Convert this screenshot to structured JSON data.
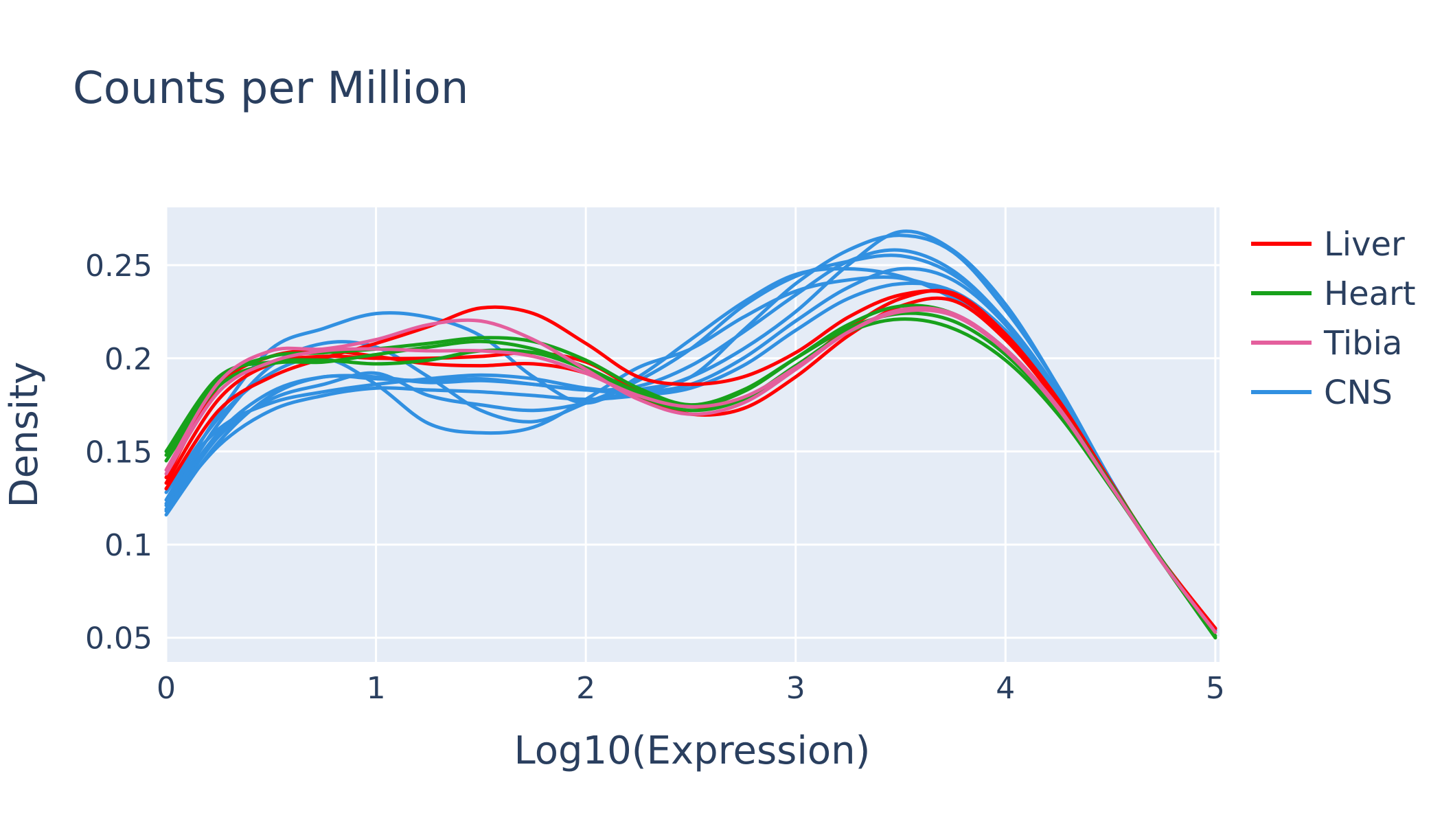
{
  "chart_data": {
    "type": "line",
    "title": "Counts per Million",
    "xlabel": "Log10(Expression)",
    "ylabel": "Density",
    "xlim": [
      0,
      5.02
    ],
    "ylim": [
      0.037,
      0.281
    ],
    "xticks": [
      0,
      1,
      2,
      3,
      4,
      5
    ],
    "xtick_labels": [
      "0",
      "1",
      "2",
      "3",
      "4",
      "5"
    ],
    "yticks": [
      0.05,
      0.1,
      0.15,
      0.2,
      0.25
    ],
    "ytick_labels": [
      "0.05",
      "0.1",
      "0.15",
      "0.2",
      "0.25"
    ],
    "grid": true,
    "background": "#e5ecf6",
    "legend_position": "right",
    "legend": [
      {
        "name": "Liver",
        "color": "#ff0000"
      },
      {
        "name": "Heart",
        "color": "#18a11b"
      },
      {
        "name": "Tibia",
        "color": "#e45f9d"
      },
      {
        "name": "CNS",
        "color": "#3190e1"
      }
    ],
    "series": [
      {
        "group": "CNS",
        "color": "#3190e1",
        "x": [
          0,
          0.25,
          0.5,
          0.75,
          1,
          1.25,
          1.5,
          1.75,
          2,
          2.25,
          2.5,
          2.75,
          3,
          3.25,
          3.5,
          3.75,
          4,
          4.25,
          4.5,
          4.75,
          5
        ],
        "y": [
          0.116,
          0.155,
          0.18,
          0.19,
          0.189,
          0.188,
          0.189,
          0.186,
          0.183,
          0.182,
          0.19,
          0.205,
          0.225,
          0.25,
          0.268,
          0.258,
          0.229,
          0.185,
          0.135,
          0.09,
          0.055
        ]
      },
      {
        "group": "CNS",
        "color": "#3190e1",
        "x": [
          0,
          0.25,
          0.5,
          0.75,
          1,
          1.25,
          1.5,
          1.75,
          2,
          2.25,
          2.5,
          2.75,
          3,
          3.25,
          3.5,
          3.75,
          4,
          4.25,
          4.5,
          4.75,
          5
        ],
        "y": [
          0.118,
          0.158,
          0.178,
          0.186,
          0.192,
          0.18,
          0.175,
          0.172,
          0.176,
          0.183,
          0.19,
          0.215,
          0.24,
          0.258,
          0.266,
          0.257,
          0.226,
          0.185,
          0.135,
          0.09,
          0.055
        ]
      },
      {
        "group": "CNS",
        "color": "#3190e1",
        "x": [
          0,
          0.25,
          0.5,
          0.75,
          1,
          1.25,
          1.5,
          1.75,
          2,
          2.25,
          2.5,
          2.75,
          3,
          3.25,
          3.5,
          3.75,
          4,
          4.25,
          4.5,
          4.75,
          5
        ],
        "y": [
          0.121,
          0.16,
          0.182,
          0.19,
          0.19,
          0.187,
          0.188,
          0.186,
          0.183,
          0.185,
          0.196,
          0.214,
          0.234,
          0.252,
          0.258,
          0.247,
          0.22,
          0.182,
          0.134,
          0.09,
          0.054
        ]
      },
      {
        "group": "CNS",
        "color": "#3190e1",
        "x": [
          0,
          0.25,
          0.5,
          0.75,
          1,
          1.25,
          1.5,
          1.75,
          2,
          2.25,
          2.5,
          2.75,
          3,
          3.25,
          3.5,
          3.75,
          4,
          4.25,
          4.5,
          4.75,
          5
        ],
        "y": [
          0.122,
          0.165,
          0.196,
          0.208,
          0.206,
          0.19,
          0.172,
          0.166,
          0.176,
          0.188,
          0.205,
          0.228,
          0.244,
          0.252,
          0.255,
          0.245,
          0.22,
          0.182,
          0.134,
          0.09,
          0.054
        ]
      },
      {
        "group": "CNS",
        "color": "#3190e1",
        "x": [
          0,
          0.25,
          0.5,
          0.75,
          1,
          1.25,
          1.5,
          1.75,
          2,
          2.25,
          2.5,
          2.75,
          3,
          3.25,
          3.5,
          3.75,
          4,
          4.25,
          4.5,
          4.75,
          5
        ],
        "y": [
          0.124,
          0.17,
          0.205,
          0.216,
          0.224,
          0.222,
          0.212,
          0.19,
          0.176,
          0.19,
          0.21,
          0.23,
          0.245,
          0.248,
          0.244,
          0.232,
          0.212,
          0.178,
          0.133,
          0.09,
          0.054
        ]
      },
      {
        "group": "CNS",
        "color": "#3190e1",
        "x": [
          0,
          0.25,
          0.5,
          0.75,
          1,
          1.25,
          1.5,
          1.75,
          2,
          2.25,
          2.5,
          2.75,
          3,
          3.25,
          3.5,
          3.75,
          4,
          4.25,
          4.5,
          4.75,
          5
        ],
        "y": [
          0.128,
          0.168,
          0.192,
          0.2,
          0.186,
          0.165,
          0.16,
          0.163,
          0.178,
          0.195,
          0.205,
          0.222,
          0.236,
          0.242,
          0.243,
          0.234,
          0.212,
          0.178,
          0.133,
          0.09,
          0.054
        ]
      },
      {
        "group": "CNS",
        "color": "#3190e1",
        "x": [
          0,
          0.25,
          0.5,
          0.75,
          1,
          1.25,
          1.5,
          1.75,
          2,
          2.25,
          2.5,
          2.75,
          3,
          3.25,
          3.5,
          3.75,
          4,
          4.25,
          4.5,
          4.75,
          5
        ],
        "y": [
          0.13,
          0.162,
          0.176,
          0.182,
          0.186,
          0.189,
          0.191,
          0.189,
          0.184,
          0.182,
          0.186,
          0.2,
          0.22,
          0.238,
          0.248,
          0.242,
          0.218,
          0.18,
          0.133,
          0.09,
          0.054
        ]
      },
      {
        "group": "CNS",
        "color": "#3190e1",
        "x": [
          0,
          0.25,
          0.5,
          0.75,
          1,
          1.25,
          1.5,
          1.75,
          2,
          2.25,
          2.5,
          2.75,
          3,
          3.25,
          3.5,
          3.75,
          4,
          4.25,
          4.5,
          4.75,
          5
        ],
        "y": [
          0.119,
          0.153,
          0.172,
          0.18,
          0.184,
          0.183,
          0.182,
          0.18,
          0.178,
          0.18,
          0.184,
          0.196,
          0.215,
          0.232,
          0.24,
          0.236,
          0.215,
          0.18,
          0.133,
          0.09,
          0.054
        ]
      },
      {
        "group": "Liver",
        "color": "#ff0000",
        "x": [
          0,
          0.25,
          0.5,
          0.75,
          1,
          1.25,
          1.5,
          1.75,
          2,
          2.25,
          2.5,
          2.75,
          3,
          3.25,
          3.5,
          3.75,
          4,
          4.25,
          4.5,
          4.75,
          5
        ],
        "y": [
          0.13,
          0.172,
          0.19,
          0.2,
          0.208,
          0.217,
          0.227,
          0.224,
          0.208,
          0.19,
          0.186,
          0.19,
          0.203,
          0.222,
          0.234,
          0.234,
          0.212,
          0.177,
          0.133,
          0.091,
          0.055
        ]
      },
      {
        "group": "Liver",
        "color": "#ff0000",
        "x": [
          0,
          0.25,
          0.5,
          0.75,
          1,
          1.25,
          1.5,
          1.75,
          2,
          2.25,
          2.5,
          2.75,
          3,
          3.25,
          3.5,
          3.75,
          4,
          4.25,
          4.5,
          4.75,
          5
        ],
        "y": [
          0.133,
          0.178,
          0.197,
          0.201,
          0.2,
          0.2,
          0.201,
          0.203,
          0.198,
          0.183,
          0.174,
          0.178,
          0.195,
          0.216,
          0.232,
          0.235,
          0.213,
          0.178,
          0.134,
          0.091,
          0.055
        ]
      },
      {
        "group": "Liver",
        "color": "#ff0000",
        "x": [
          0,
          0.25,
          0.5,
          0.75,
          1,
          1.25,
          1.5,
          1.75,
          2,
          2.25,
          2.5,
          2.75,
          3,
          3.25,
          3.5,
          3.75,
          4,
          4.25,
          4.5,
          4.75,
          5
        ],
        "y": [
          0.136,
          0.185,
          0.201,
          0.204,
          0.201,
          0.197,
          0.196,
          0.197,
          0.192,
          0.179,
          0.17,
          0.173,
          0.19,
          0.212,
          0.228,
          0.231,
          0.21,
          0.176,
          0.132,
          0.09,
          0.055
        ]
      },
      {
        "group": "Heart",
        "color": "#18a11b",
        "x": [
          0,
          0.25,
          0.5,
          0.75,
          1,
          1.25,
          1.5,
          1.75,
          2,
          2.25,
          2.5,
          2.75,
          3,
          3.25,
          3.5,
          3.75,
          4,
          4.25,
          4.5,
          4.75,
          5
        ],
        "y": [
          0.145,
          0.185,
          0.197,
          0.198,
          0.202,
          0.206,
          0.209,
          0.205,
          0.195,
          0.182,
          0.174,
          0.182,
          0.2,
          0.218,
          0.228,
          0.224,
          0.205,
          0.174,
          0.133,
          0.091,
          0.051
        ]
      },
      {
        "group": "Heart",
        "color": "#18a11b",
        "x": [
          0,
          0.25,
          0.5,
          0.75,
          1,
          1.25,
          1.5,
          1.75,
          2,
          2.25,
          2.5,
          2.75,
          3,
          3.25,
          3.5,
          3.75,
          4,
          4.25,
          4.5,
          4.75,
          5
        ],
        "y": [
          0.148,
          0.188,
          0.201,
          0.203,
          0.205,
          0.208,
          0.211,
          0.209,
          0.199,
          0.184,
          0.175,
          0.183,
          0.2,
          0.216,
          0.224,
          0.22,
          0.202,
          0.172,
          0.132,
          0.09,
          0.05
        ]
      },
      {
        "group": "Heart",
        "color": "#18a11b",
        "x": [
          0,
          0.25,
          0.5,
          0.75,
          1,
          1.25,
          1.5,
          1.75,
          2,
          2.25,
          2.5,
          2.75,
          3,
          3.25,
          3.5,
          3.75,
          4,
          4.25,
          4.5,
          4.75,
          5
        ],
        "y": [
          0.15,
          0.19,
          0.198,
          0.199,
          0.197,
          0.199,
          0.204,
          0.203,
          0.194,
          0.18,
          0.172,
          0.178,
          0.196,
          0.214,
          0.221,
          0.216,
          0.199,
          0.17,
          0.131,
          0.09,
          0.05
        ]
      },
      {
        "group": "Tibia",
        "color": "#e45f9d",
        "x": [
          0,
          0.25,
          0.5,
          0.75,
          1,
          1.25,
          1.5,
          1.75,
          2,
          2.25,
          2.5,
          2.75,
          3,
          3.25,
          3.5,
          3.75,
          4,
          4.25,
          4.5,
          4.75,
          5
        ],
        "y": [
          0.14,
          0.187,
          0.204,
          0.205,
          0.21,
          0.218,
          0.22,
          0.21,
          0.194,
          0.178,
          0.17,
          0.176,
          0.194,
          0.214,
          0.226,
          0.224,
          0.205,
          0.174,
          0.132,
          0.09,
          0.053
        ]
      },
      {
        "group": "Tibia",
        "color": "#e45f9d",
        "x": [
          0,
          0.25,
          0.5,
          0.75,
          1,
          1.25,
          1.5,
          1.75,
          2,
          2.25,
          2.5,
          2.75,
          3,
          3.25,
          3.5,
          3.75,
          4,
          4.25,
          4.5,
          4.75,
          5
        ],
        "y": [
          0.138,
          0.182,
          0.198,
          0.204,
          0.205,
          0.204,
          0.204,
          0.201,
          0.192,
          0.18,
          0.174,
          0.179,
          0.195,
          0.214,
          0.225,
          0.223,
          0.204,
          0.173,
          0.132,
          0.09,
          0.053
        ]
      }
    ]
  }
}
